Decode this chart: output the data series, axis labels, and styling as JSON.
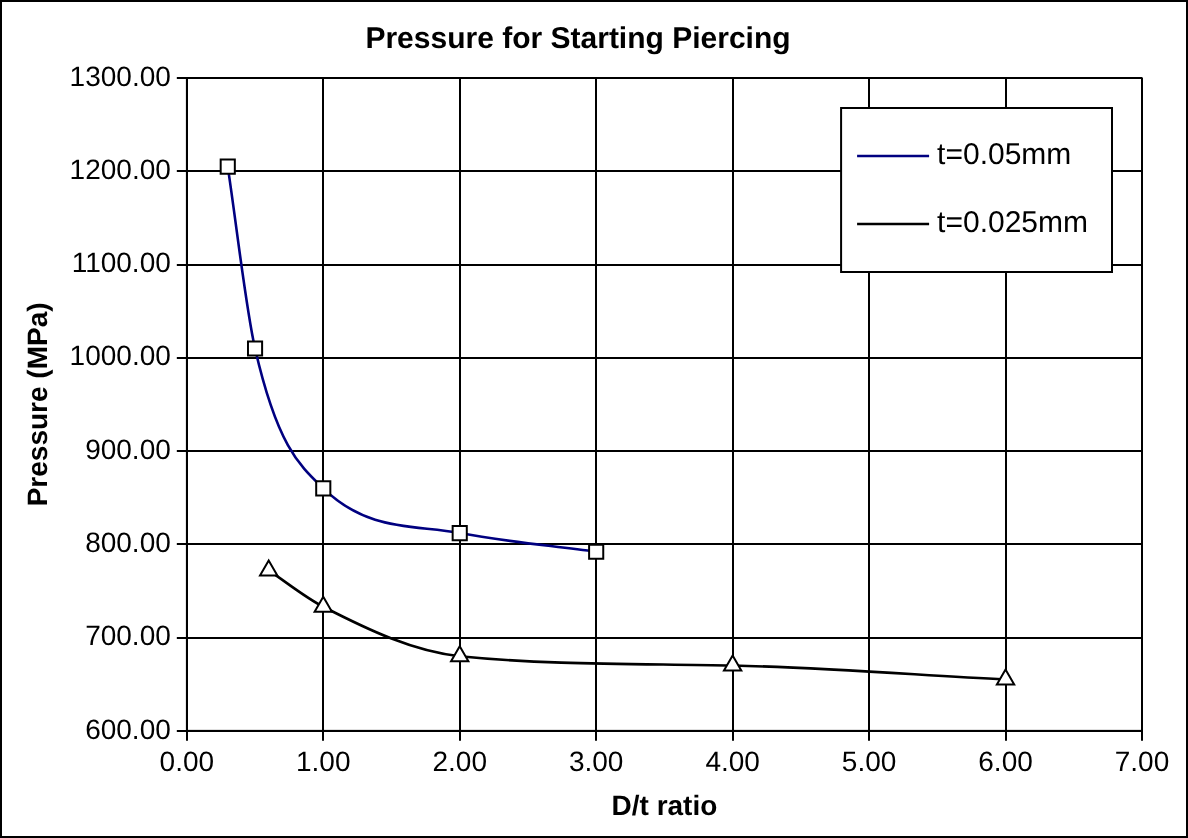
{
  "chart_data": {
    "type": "line",
    "title": "Pressure for Starting Piercing",
    "xlabel": "D/t ratio",
    "ylabel": "Pressure (MPa)",
    "series": [
      {
        "name": "t=0.05mm",
        "color": "#000080",
        "marker": "square",
        "x": [
          0.3,
          0.5,
          1,
          2,
          3
        ],
        "values": [
          1205,
          1010,
          860,
          812,
          792
        ]
      },
      {
        "name": "t=0.025mm",
        "color": "#000000",
        "marker": "triangle",
        "x": [
          0.6,
          1,
          2,
          4,
          6
        ],
        "values": [
          772,
          733,
          680,
          670,
          655
        ]
      }
    ],
    "xlim": [
      0,
      7
    ],
    "xticks": [
      {
        "value": 0,
        "label": "0.00"
      },
      {
        "value": 1,
        "label": "1.00"
      },
      {
        "value": 2,
        "label": "2.00"
      },
      {
        "value": 3,
        "label": "3.00"
      },
      {
        "value": 4,
        "label": "4.00"
      },
      {
        "value": 5,
        "label": "5.00"
      },
      {
        "value": 6,
        "label": "6.00"
      },
      {
        "value": 7,
        "label": "7.00"
      }
    ],
    "ylim": [
      600,
      1300
    ],
    "yticks": [
      {
        "value": 600,
        "label": "600.00"
      },
      {
        "value": 700,
        "label": "700.00"
      },
      {
        "value": 800,
        "label": "800.00"
      },
      {
        "value": 900,
        "label": "900.00"
      },
      {
        "value": 1000,
        "label": "1000.00"
      },
      {
        "value": 1100,
        "label": "1100.00"
      },
      {
        "value": 1200,
        "label": "1200.00"
      },
      {
        "value": 1300,
        "label": "1300.00"
      }
    ],
    "grid": true,
    "legend": "top right",
    "line_style": "solid"
  }
}
